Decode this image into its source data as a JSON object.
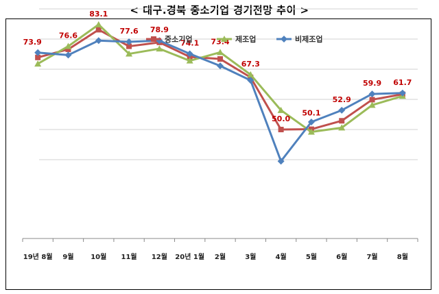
{
  "chart_data": {
    "type": "line",
    "title": "< 대구.경북 중소기업 경기전망 추이 >",
    "categories": [
      "19년 8월",
      "9월",
      "10월",
      "11월",
      "12월",
      "20년 1월",
      "2월",
      "3월",
      "4월",
      "5월",
      "6월",
      "7월",
      "8월"
    ],
    "series": [
      {
        "name": "중소기업",
        "color": "#c0504d",
        "marker": "square",
        "values": [
          73.9,
          76.6,
          83.1,
          77.6,
          78.9,
          74.1,
          73.4,
          67.3,
          50.0,
          50.1,
          52.9,
          59.9,
          61.7
        ]
      },
      {
        "name": "제조업",
        "color": "#9bbb59",
        "marker": "triangle",
        "values": [
          71.8,
          77.6,
          84.8,
          75.1,
          76.8,
          72.8,
          75.6,
          68.2,
          56.4,
          49.2,
          50.6,
          58.1,
          61.1
        ]
      },
      {
        "name": "비제조업",
        "color": "#4f81bd",
        "marker": "diamond",
        "values": [
          75.5,
          74.7,
          79.5,
          79.1,
          79.5,
          75.1,
          71.1,
          66.3,
          39.5,
          52.5,
          56.4,
          61.8,
          62.1
        ]
      }
    ],
    "data_labels": [
      "73.9",
      "76.6",
      "83.1",
      "77.6",
      "78.9",
      "74.1",
      "73.4",
      "67.3",
      "50.0",
      "50.1",
      "52.9",
      "59.9",
      "61.7"
    ],
    "ylim": [
      37,
      97
    ],
    "gridlines": [
      40,
      50,
      60,
      70,
      80,
      90
    ],
    "grid": true,
    "legend": "top-center",
    "label_color": "#c00000"
  }
}
